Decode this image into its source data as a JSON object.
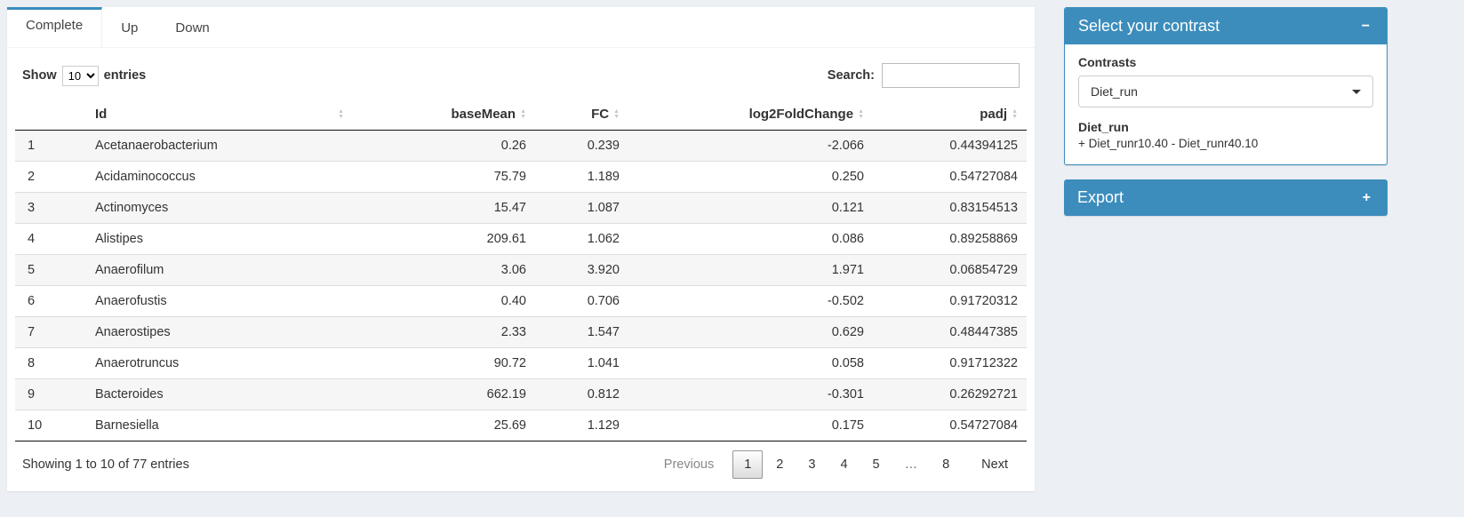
{
  "page": {
    "background": "#ecf0f5",
    "accent": "#3c8dbc"
  },
  "tabs": [
    {
      "label": "Complete",
      "active": true
    },
    {
      "label": "Up",
      "active": false
    },
    {
      "label": "Down",
      "active": false
    }
  ],
  "length_control": {
    "show": "Show",
    "entries": "entries",
    "selected": "10"
  },
  "search": {
    "label": "Search:",
    "value": ""
  },
  "table": {
    "headers": [
      {
        "label": "Id",
        "align": "left"
      },
      {
        "label": "baseMean",
        "align": "right"
      },
      {
        "label": "FC",
        "align": "right"
      },
      {
        "label": "log2FoldChange",
        "align": "right"
      },
      {
        "label": "padj",
        "align": "right"
      }
    ],
    "rows": [
      [
        "1",
        "Acetanaerobacterium",
        "0.26",
        "0.239",
        "-2.066",
        "0.44394125"
      ],
      [
        "2",
        "Acidaminococcus",
        "75.79",
        "1.189",
        "0.250",
        "0.54727084"
      ],
      [
        "3",
        "Actinomyces",
        "15.47",
        "1.087",
        "0.121",
        "0.83154513"
      ],
      [
        "4",
        "Alistipes",
        "209.61",
        "1.062",
        "0.086",
        "0.89258869"
      ],
      [
        "5",
        "Anaerofilum",
        "3.06",
        "3.920",
        "1.971",
        "0.06854729"
      ],
      [
        "6",
        "Anaerofustis",
        "0.40",
        "0.706",
        "-0.502",
        "0.91720312"
      ],
      [
        "7",
        "Anaerostipes",
        "2.33",
        "1.547",
        "0.629",
        "0.48447385"
      ],
      [
        "8",
        "Anaerotruncus",
        "90.72",
        "1.041",
        "0.058",
        "0.91712322"
      ],
      [
        "9",
        "Bacteroides",
        "662.19",
        "0.812",
        "-0.301",
        "0.26292721"
      ],
      [
        "10",
        "Barnesiella",
        "25.69",
        "1.129",
        "0.175",
        "0.54727084"
      ]
    ]
  },
  "pagination": {
    "info": "Showing 1 to 10 of 77 entries",
    "previous": "Previous",
    "pages": [
      "1",
      "2",
      "3",
      "4",
      "5",
      "…",
      "8"
    ],
    "active": "1",
    "next": "Next"
  },
  "contrast_box": {
    "title": "Select your contrast",
    "collapse_icon": "−",
    "contrasts_label": "Contrasts",
    "selected_contrast": "Diet_run",
    "detail_name": "Diet_run",
    "detail_formula": "+ Diet_runr10.40 - Diet_runr40.10"
  },
  "export_box": {
    "title": "Export",
    "expand_icon": "+"
  }
}
